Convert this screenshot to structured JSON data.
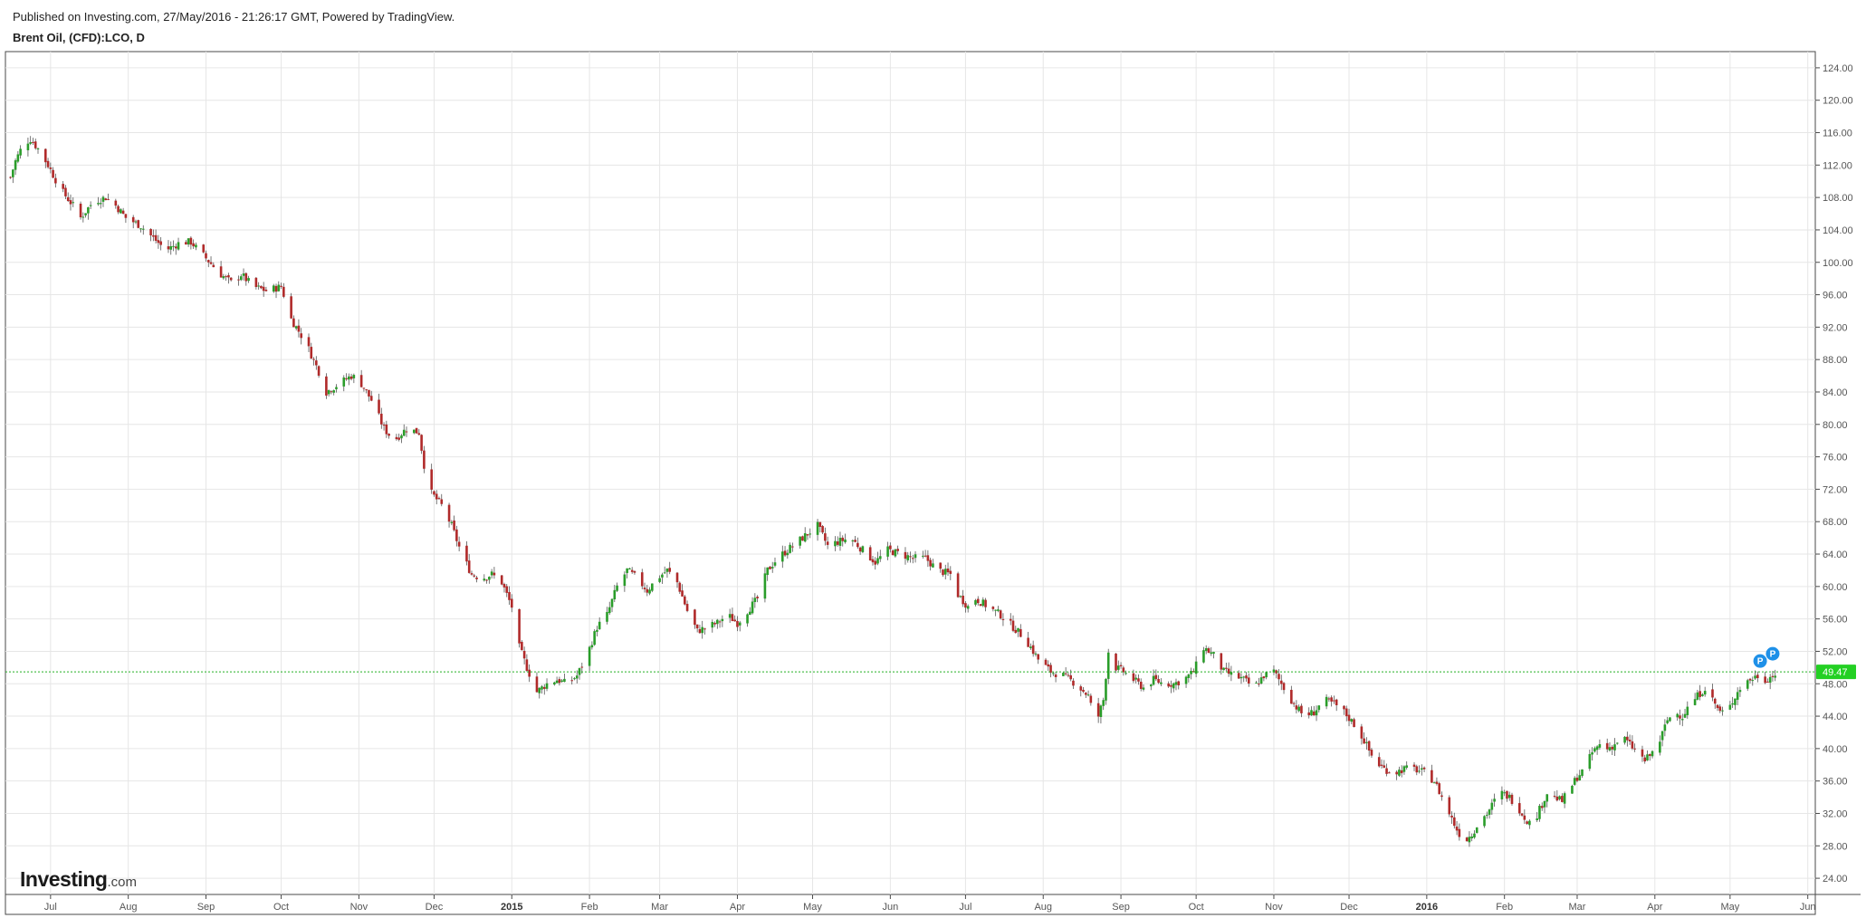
{
  "header": {
    "published": "Published on Investing.com, 27/May/2016 - 21:26:17 GMT, Powered by TradingView.",
    "symbol": "Brent Oil, (CFD):LCO, D"
  },
  "logo": {
    "brand": "Investing",
    "suffix": ".com"
  },
  "colors": {
    "up": "#2a9d2a",
    "down": "#b02a2a",
    "grid": "#e6e6e6",
    "priceLine": "#23b023",
    "priceTag": "#23d023",
    "marker": "#1e90e8"
  },
  "last_price_label": "49.47",
  "markers": [
    "P",
    "P"
  ],
  "chart_data": {
    "type": "candlestick",
    "title": "Brent Oil, (CFD):LCO, D",
    "ylim": [
      22,
      126
    ],
    "y_ticks": [
      "24.00",
      "28.00",
      "32.00",
      "36.00",
      "40.00",
      "44.00",
      "48.00",
      "52.00",
      "56.00",
      "60.00",
      "64.00",
      "68.00",
      "72.00",
      "76.00",
      "80.00",
      "84.00",
      "88.00",
      "92.00",
      "96.00",
      "100.00",
      "104.00",
      "108.00",
      "112.00",
      "116.00",
      "120.00",
      "124.00"
    ],
    "x_ticks": [
      {
        "label": "Jul",
        "day": 16,
        "year": false
      },
      {
        "label": "Aug",
        "day": 47,
        "year": false
      },
      {
        "label": "Sep",
        "day": 78,
        "year": false
      },
      {
        "label": "Oct",
        "day": 108,
        "year": false
      },
      {
        "label": "Nov",
        "day": 139,
        "year": false
      },
      {
        "label": "Dec",
        "day": 169,
        "year": false
      },
      {
        "label": "2015",
        "day": 200,
        "year": true
      },
      {
        "label": "Feb",
        "day": 231,
        "year": false
      },
      {
        "label": "Mar",
        "day": 259,
        "year": false
      },
      {
        "label": "Apr",
        "day": 290,
        "year": false
      },
      {
        "label": "May",
        "day": 320,
        "year": false
      },
      {
        "label": "Jun",
        "day": 351,
        "year": false
      },
      {
        "label": "Jul",
        "day": 381,
        "year": false
      },
      {
        "label": "Aug",
        "day": 412,
        "year": false
      },
      {
        "label": "Sep",
        "day": 443,
        "year": false
      },
      {
        "label": "Oct",
        "day": 473,
        "year": false
      },
      {
        "label": "Nov",
        "day": 504,
        "year": false
      },
      {
        "label": "Dec",
        "day": 534,
        "year": false
      },
      {
        "label": "2016",
        "day": 565,
        "year": true
      },
      {
        "label": "Feb",
        "day": 596,
        "year": false
      },
      {
        "label": "Mar",
        "day": 625,
        "year": false
      },
      {
        "label": "Apr",
        "day": 656,
        "year": false
      },
      {
        "label": "May",
        "day": 686,
        "year": false
      },
      {
        "label": "Jun",
        "day": 717,
        "year": false
      }
    ],
    "x_domain_days": [
      -2,
      720
    ],
    "close_path": [
      [
        0,
        110.5
      ],
      [
        2,
        112.5
      ],
      [
        5,
        114.5
      ],
      [
        8,
        115.2
      ],
      [
        11,
        114.0
      ],
      [
        15,
        112.0
      ],
      [
        20,
        109.0
      ],
      [
        25,
        107.0
      ],
      [
        28,
        105.5
      ],
      [
        33,
        107.5
      ],
      [
        38,
        108.0
      ],
      [
        42,
        107.0
      ],
      [
        46,
        105.5
      ],
      [
        52,
        104.5
      ],
      [
        57,
        103.0
      ],
      [
        62,
        101.5
      ],
      [
        68,
        102.5
      ],
      [
        72,
        102.5
      ],
      [
        78,
        100.5
      ],
      [
        84,
        98.5
      ],
      [
        88,
        97.5
      ],
      [
        92,
        98.5
      ],
      [
        97,
        97.0
      ],
      [
        102,
        96.5
      ],
      [
        108,
        97.0
      ],
      [
        112,
        93.0
      ],
      [
        118,
        90.0
      ],
      [
        123,
        86.5
      ],
      [
        126,
        84.0
      ],
      [
        131,
        85.0
      ],
      [
        136,
        86.0
      ],
      [
        139,
        85.5
      ],
      [
        144,
        83.0
      ],
      [
        149,
        79.5
      ],
      [
        153,
        78.0
      ],
      [
        158,
        79.5
      ],
      [
        163,
        79.0
      ],
      [
        165,
        75.0
      ],
      [
        168,
        71.5
      ],
      [
        172,
        70.0
      ],
      [
        176,
        67.5
      ],
      [
        180,
        64.0
      ],
      [
        184,
        61.5
      ],
      [
        188,
        61.0
      ],
      [
        192,
        61.5
      ],
      [
        196,
        60.5
      ],
      [
        200,
        57.5
      ],
      [
        203,
        52.5
      ],
      [
        206,
        50.0
      ],
      [
        210,
        47.0
      ],
      [
        214,
        48.0
      ],
      [
        218,
        48.5
      ],
      [
        222,
        48.0
      ],
      [
        226,
        49.0
      ],
      [
        230,
        51.5
      ],
      [
        234,
        55.0
      ],
      [
        238,
        56.5
      ],
      [
        242,
        60.0
      ],
      [
        246,
        62.0
      ],
      [
        250,
        61.0
      ],
      [
        254,
        59.5
      ],
      [
        258,
        61.0
      ],
      [
        262,
        62.0
      ],
      [
        266,
        60.5
      ],
      [
        270,
        57.0
      ],
      [
        274,
        54.5
      ],
      [
        278,
        55.0
      ],
      [
        282,
        55.5
      ],
      [
        286,
        56.5
      ],
      [
        290,
        55.5
      ],
      [
        294,
        57.0
      ],
      [
        298,
        58.5
      ],
      [
        302,
        62.0
      ],
      [
        306,
        63.5
      ],
      [
        310,
        64.5
      ],
      [
        314,
        65.5
      ],
      [
        318,
        66.5
      ],
      [
        322,
        67.5
      ],
      [
        326,
        65.0
      ],
      [
        330,
        65.5
      ],
      [
        335,
        66.0
      ],
      [
        340,
        64.5
      ],
      [
        345,
        63.0
      ],
      [
        350,
        64.5
      ],
      [
        355,
        64.0
      ],
      [
        360,
        63.5
      ],
      [
        365,
        63.5
      ],
      [
        370,
        62.0
      ],
      [
        375,
        61.5
      ],
      [
        378,
        59.0
      ],
      [
        382,
        57.5
      ],
      [
        385,
        58.5
      ],
      [
        390,
        57.5
      ],
      [
        395,
        56.5
      ],
      [
        400,
        55.0
      ],
      [
        405,
        53.5
      ],
      [
        410,
        51.0
      ],
      [
        415,
        49.5
      ],
      [
        420,
        49.0
      ],
      [
        425,
        48.0
      ],
      [
        430,
        46.5
      ],
      [
        433,
        43.0
      ],
      [
        436,
        46.0
      ],
      [
        438,
        52.0
      ],
      [
        441,
        50.0
      ],
      [
        444,
        49.5
      ],
      [
        448,
        48.5
      ],
      [
        452,
        47.5
      ],
      [
        456,
        48.5
      ],
      [
        460,
        48.0
      ],
      [
        464,
        48.0
      ],
      [
        468,
        48.5
      ],
      [
        472,
        49.5
      ],
      [
        476,
        52.5
      ],
      [
        480,
        51.5
      ],
      [
        484,
        49.5
      ],
      [
        488,
        49.0
      ],
      [
        492,
        48.5
      ],
      [
        496,
        47.5
      ],
      [
        500,
        49.0
      ],
      [
        504,
        49.5
      ],
      [
        508,
        47.5
      ],
      [
        512,
        45.5
      ],
      [
        516,
        44.0
      ],
      [
        520,
        44.5
      ],
      [
        524,
        46.0
      ],
      [
        528,
        45.5
      ],
      [
        532,
        44.5
      ],
      [
        536,
        43.0
      ],
      [
        540,
        41.0
      ],
      [
        544,
        38.5
      ],
      [
        548,
        37.5
      ],
      [
        552,
        37.0
      ],
      [
        556,
        37.5
      ],
      [
        560,
        37.5
      ],
      [
        564,
        37.0
      ],
      [
        568,
        36.0
      ],
      [
        571,
        34.0
      ],
      [
        574,
        32.0
      ],
      [
        577,
        30.0
      ],
      [
        580,
        28.5
      ],
      [
        583,
        29.5
      ],
      [
        586,
        31.0
      ],
      [
        589,
        32.0
      ],
      [
        592,
        33.5
      ],
      [
        595,
        34.5
      ],
      [
        598,
        34.0
      ],
      [
        601,
        33.0
      ],
      [
        604,
        31.5
      ],
      [
        607,
        30.5
      ],
      [
        610,
        32.5
      ],
      [
        613,
        34.5
      ],
      [
        616,
        34.0
      ],
      [
        619,
        33.5
      ],
      [
        622,
        35.0
      ],
      [
        625,
        36.5
      ],
      [
        628,
        37.5
      ],
      [
        631,
        39.5
      ],
      [
        634,
        40.5
      ],
      [
        637,
        40.0
      ],
      [
        640,
        40.5
      ],
      [
        643,
        41.5
      ],
      [
        646,
        40.5
      ],
      [
        649,
        39.5
      ],
      [
        652,
        38.5
      ],
      [
        655,
        39.5
      ],
      [
        658,
        41.0
      ],
      [
        661,
        43.5
      ],
      [
        664,
        44.5
      ],
      [
        667,
        44.0
      ],
      [
        670,
        45.5
      ],
      [
        673,
        46.5
      ],
      [
        676,
        47.5
      ],
      [
        679,
        46.0
      ],
      [
        682,
        44.5
      ],
      [
        685,
        44.5
      ],
      [
        688,
        46.5
      ],
      [
        691,
        48.0
      ],
      [
        694,
        48.5
      ],
      [
        697,
        49.0
      ],
      [
        700,
        48.5
      ],
      [
        703,
        49.0
      ],
      [
        706,
        49.47
      ]
    ],
    "last_price": 49.47
  }
}
